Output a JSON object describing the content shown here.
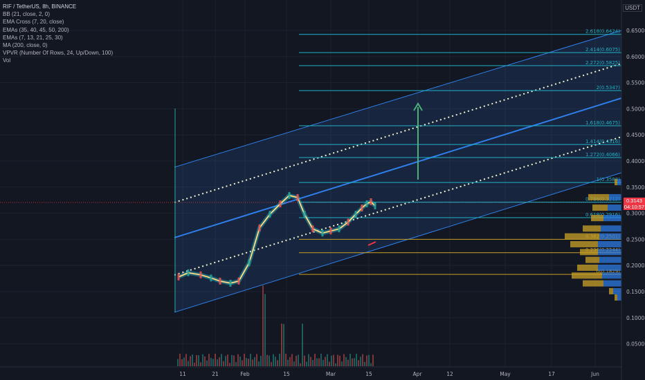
{
  "legend": {
    "symbol": "RIF / TetherUS, 8h, BINANCE",
    "indicators": [
      "BB (21, close, 2, 0)",
      "EMA Cross (7, 20, close)",
      "EMAs (35, 40, 45, 50, 200)",
      "EMAs (7, 13, 21, 25, 30)",
      "MA (200, close, 0)",
      "VPVR (Number Of Rows, 24, Up/Down, 100)",
      "Vol"
    ]
  },
  "currency": "USDT",
  "price_tag": {
    "price": "0.3143",
    "countdown": "04:10:57"
  },
  "colors": {
    "background": "#131722",
    "grid": "#1e222d",
    "fib": "#1fb3c8",
    "fib_low": "#c9a227",
    "channel": "#2f80ed",
    "dotted": "#f3f4d2",
    "arrow": "#4caf7a",
    "price_line": "#f23645"
  },
  "chart_data": {
    "type": "line",
    "yaxis": {
      "ticks": [
        "0.6500",
        "0.6000",
        "0.5500",
        "0.5000",
        "0.4500",
        "0.4000",
        "0.3500",
        "0.3000",
        "0.2500",
        "0.2000",
        "0.1500",
        "0.1000",
        "0.0500"
      ]
    },
    "xaxis": {
      "ticks": [
        "11",
        "21",
        "Feb",
        "15",
        "Mar",
        "15",
        "Apr",
        "12",
        "May",
        "17",
        "Jun"
      ]
    },
    "fib_levels": [
      {
        "ratio": "2.618",
        "price": 0.6424
      },
      {
        "ratio": "2.414",
        "price": 0.6075
      },
      {
        "ratio": "2.272",
        "price": 0.5825
      },
      {
        "ratio": "2",
        "price": 0.5347
      },
      {
        "ratio": "1.618",
        "price": 0.4675
      },
      {
        "ratio": "1.414",
        "price": 0.4316
      },
      {
        "ratio": "1.272",
        "price": 0.4066
      },
      {
        "ratio": "1",
        "price": 0.3588
      },
      {
        "ratio": "0.786",
        "price": 0.3212
      },
      {
        "ratio": "0.618",
        "price": 0.2916
      },
      {
        "ratio": "0.382",
        "price": 0.2501
      },
      {
        "ratio": "0.236",
        "price": 0.2244
      },
      {
        "ratio": "0",
        "price": 0.1829
      }
    ],
    "price_series": [
      [
        "11",
        0.178
      ],
      [
        "15",
        0.186
      ],
      [
        "21",
        0.182
      ],
      [
        "25",
        0.176
      ],
      [
        "29",
        0.17
      ],
      [
        "Feb",
        0.166
      ],
      [
        "Feb 4",
        0.17
      ],
      [
        "Feb 7",
        0.205
      ],
      [
        "Feb 10",
        0.272
      ],
      [
        "Feb 13",
        0.298
      ],
      [
        "15",
        0.318
      ],
      [
        "Feb 18",
        0.334
      ],
      [
        "Feb 20",
        0.33
      ],
      [
        "Feb 22",
        0.298
      ],
      [
        "Feb 24",
        0.27
      ],
      [
        "Feb 26",
        0.262
      ],
      [
        "Mar",
        0.266
      ],
      [
        "Mar 4",
        0.27
      ],
      [
        "Mar 8",
        0.283
      ],
      [
        "Mar 11",
        0.298
      ],
      [
        "Mar 14",
        0.31
      ],
      [
        "15",
        0.318
      ],
      [
        "Mar 17",
        0.322
      ],
      [
        "Mar 19",
        0.314
      ]
    ],
    "volume_profile": [
      {
        "price": 0.3588,
        "up": 4,
        "down": 6
      },
      {
        "price": 0.33,
        "up": 30,
        "down": 18
      },
      {
        "price": 0.31,
        "up": 22,
        "down": 20
      },
      {
        "price": 0.29,
        "up": 18,
        "down": 26
      },
      {
        "price": 0.27,
        "up": 26,
        "down": 30
      },
      {
        "price": 0.255,
        "up": 50,
        "down": 32
      },
      {
        "price": 0.24,
        "up": 40,
        "down": 34
      },
      {
        "price": 0.225,
        "up": 26,
        "down": 34
      },
      {
        "price": 0.21,
        "up": 20,
        "down": 32
      },
      {
        "price": 0.195,
        "up": 30,
        "down": 34
      },
      {
        "price": 0.18,
        "up": 44,
        "down": 28
      },
      {
        "price": 0.165,
        "up": 30,
        "down": 26
      },
      {
        "price": 0.15,
        "up": 6,
        "down": 12
      },
      {
        "price": 0.138,
        "up": 4,
        "down": 6
      }
    ]
  }
}
